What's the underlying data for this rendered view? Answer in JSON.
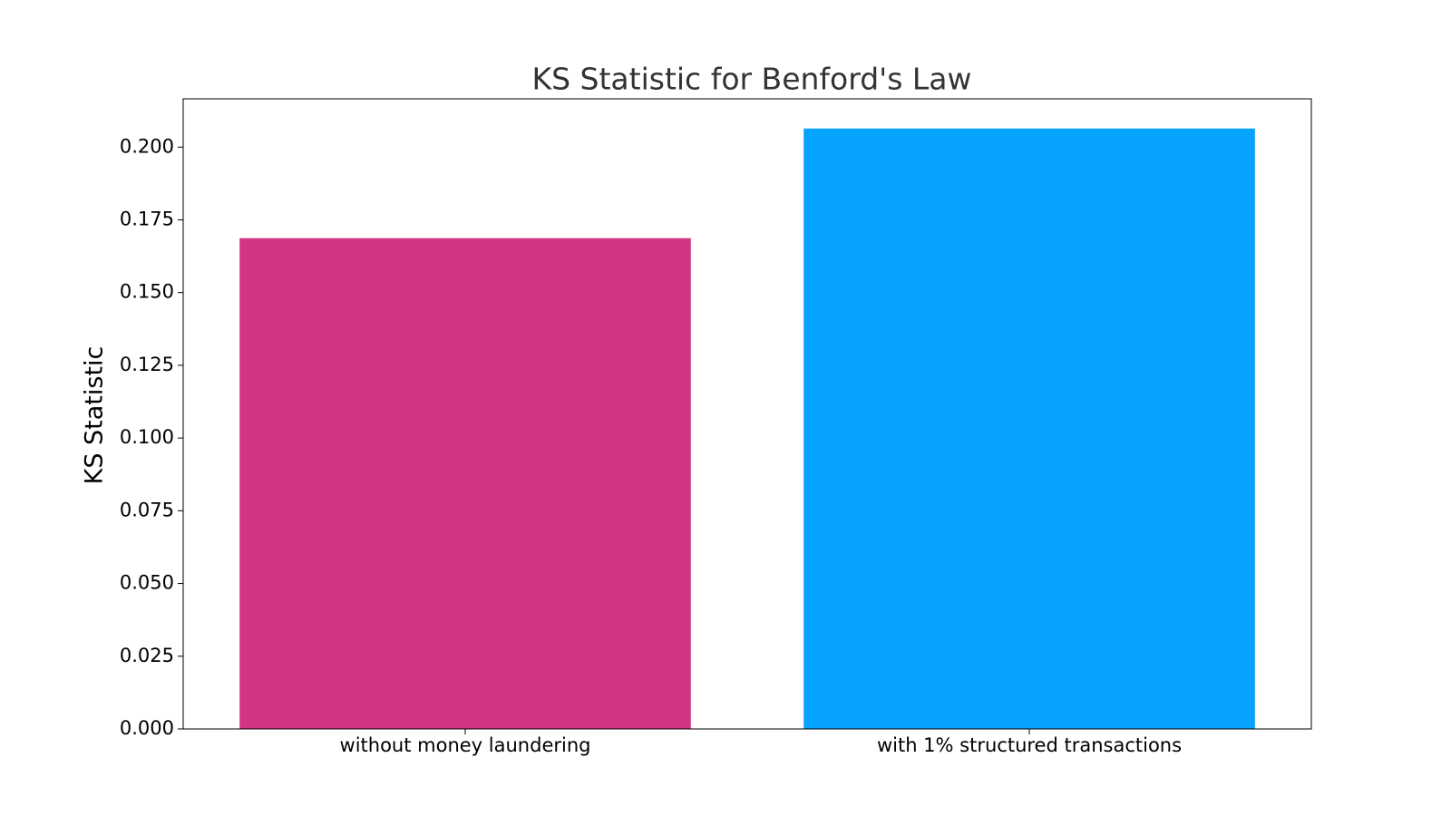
{
  "chart_data": {
    "type": "bar",
    "title": "KS Statistic for Benford's Law",
    "y_label": "KS Statistic",
    "categories": [
      "without money laundering",
      "with 1% structured transactions"
    ],
    "values": [
      0.1687,
      0.2064
    ],
    "colors": [
      "#d13584",
      "#05a2fe"
    ],
    "ylim": [
      0,
      0.2166
    ],
    "yticks": [
      {
        "value": 0,
        "label": "0.000"
      },
      {
        "value": 0.025,
        "label": "0.025"
      },
      {
        "value": 0.05,
        "label": "0.050"
      },
      {
        "value": 0.075,
        "label": "0.075"
      },
      {
        "value": 0.1,
        "label": "0.100"
      },
      {
        "value": 0.125,
        "label": "0.125"
      },
      {
        "value": 0.15,
        "label": "0.150"
      },
      {
        "value": 0.175,
        "label": "0.175"
      },
      {
        "value": 0.2,
        "label": "0.200"
      }
    ],
    "grid": false
  }
}
